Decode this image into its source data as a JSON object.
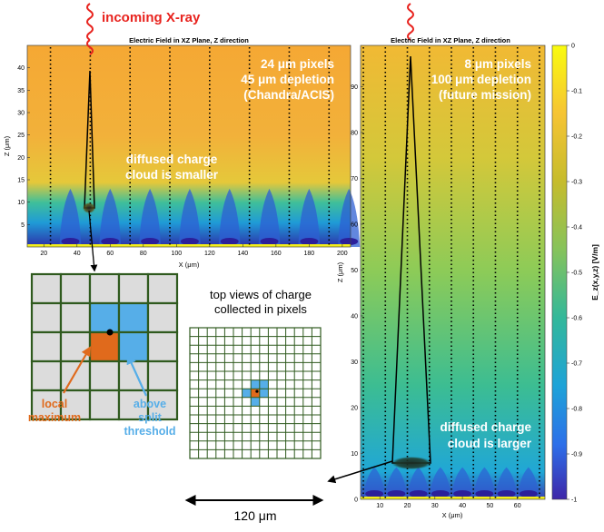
{
  "labels": {
    "incoming": "incoming X-ray",
    "top_views_1": "top views of charge",
    "top_views_2": "collected in pixels",
    "local_1": "local",
    "local_2": "maximum",
    "above_1": "above",
    "above_2": "split",
    "above_3": "threshold",
    "scale": "120 μm"
  },
  "left_plot": {
    "title": "Electric Field in XZ Plane, Z direction",
    "xlabel": "X (μm)",
    "ylabel": "Z (μm)",
    "x_ticks": [
      "20",
      "40",
      "60",
      "80",
      "100",
      "120",
      "140",
      "160",
      "180",
      "200"
    ],
    "y_ticks": [
      "5",
      "10",
      "15",
      "20",
      "25",
      "30",
      "35",
      "40"
    ],
    "note_1": "24 μm pixels",
    "note_2": "45 μm depletion",
    "note_3": "(Chandra/ACIS)",
    "cloud_1": "diffused charge",
    "cloud_2": "cloud is smaller"
  },
  "right_plot": {
    "title": "Electric Field in XZ Plane, Z direction",
    "xlabel": "X (μm)",
    "ylabel": "Z (μm)",
    "x_ticks": [
      "10",
      "20",
      "30",
      "40",
      "50",
      "60"
    ],
    "y_ticks": [
      "10",
      "20",
      "30",
      "40",
      "50",
      "60",
      "70",
      "80",
      "90"
    ],
    "note_1": "8 μm pixels",
    "note_2": "100 μm depletion",
    "note_3": "(future mission)",
    "cloud_1": "diffused charge",
    "cloud_2": "cloud is larger"
  },
  "colorbar": {
    "ticks": [
      "0",
      "-0.1",
      "-0.2",
      "-0.3",
      "-0.4",
      "-0.5",
      "-0.6",
      "-0.7",
      "-0.8",
      "-0.9",
      "-1"
    ],
    "label": "E_z(x,y,z) [V/m]"
  },
  "colors": {
    "xray": "#e8231e",
    "orange": "#e06a1c",
    "blue": "#56aee8",
    "grid_green": "#2f5a1e",
    "cell_gray": "#dcdcdc"
  }
}
